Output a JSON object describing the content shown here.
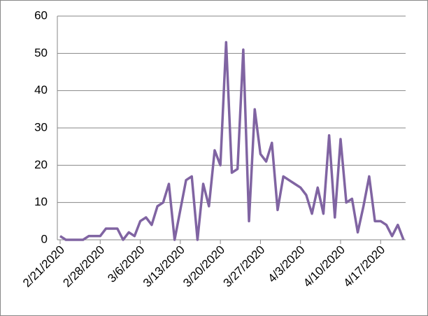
{
  "chart_data": {
    "type": "line",
    "categories": [
      "2/21/2020",
      null,
      null,
      null,
      null,
      null,
      null,
      "2/28/2020",
      null,
      null,
      null,
      null,
      null,
      null,
      "3/6/2020",
      null,
      null,
      null,
      null,
      null,
      null,
      "3/13/2020",
      null,
      null,
      null,
      null,
      null,
      null,
      "3/20/2020",
      null,
      null,
      null,
      null,
      null,
      null,
      "3/27/2020",
      null,
      null,
      null,
      null,
      null,
      null,
      "4/3/2020",
      null,
      null,
      null,
      null,
      null,
      null,
      "4/10/2020",
      null,
      null,
      null,
      null,
      null,
      null,
      "4/17/2020",
      null,
      null,
      null,
      null
    ],
    "series": [
      {
        "color": "#8064a2",
        "values": [
          1,
          0,
          0,
          0,
          0,
          1,
          1,
          1,
          3,
          3,
          3,
          0,
          2,
          1,
          5,
          6,
          4,
          9,
          10,
          15,
          0,
          8,
          16,
          17,
          0,
          15,
          9,
          24,
          20,
          53,
          18,
          19,
          51,
          5,
          35,
          23,
          21,
          26,
          8,
          17,
          16,
          15,
          14,
          12,
          7,
          14,
          7,
          28,
          6,
          27,
          10,
          11,
          2,
          9,
          17,
          5,
          5,
          4,
          1,
          4,
          0
        ]
      }
    ],
    "ylim": [
      0,
      60
    ],
    "yticks": [
      0,
      10,
      20,
      30,
      40,
      50,
      60
    ],
    "grid": true
  }
}
